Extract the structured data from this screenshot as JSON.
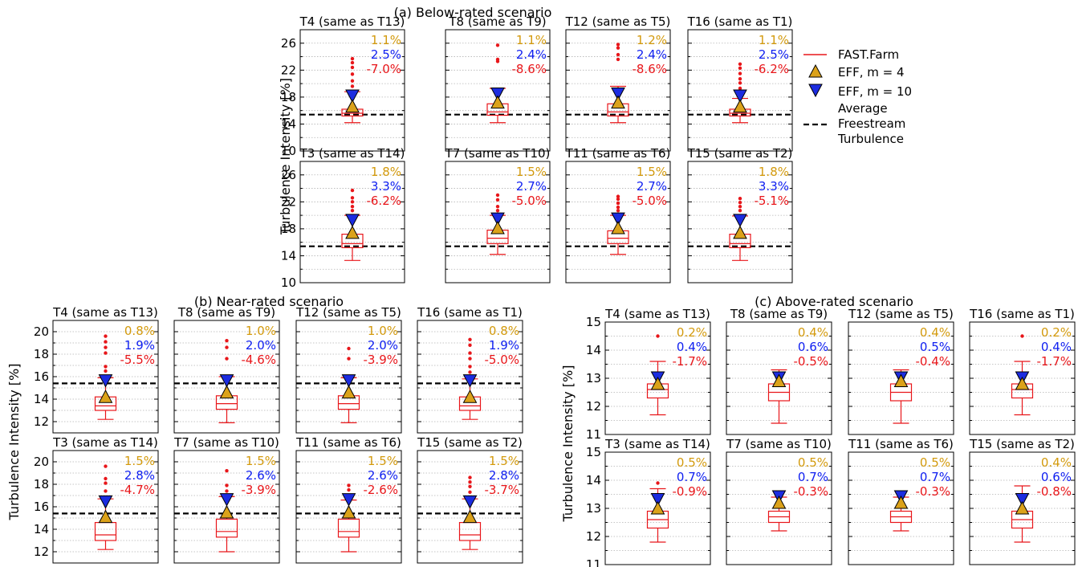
{
  "colors": {
    "farm": "#e8161a",
    "eff4": "#dba21a",
    "eff10": "#1c2ce0",
    "pct4": "#d39a0d",
    "pct10": "#1020f0",
    "pct_err": "#e8161a",
    "freestream": "#000000",
    "grid": "#b4b4b4"
  },
  "legend": {
    "farm": "FAST.Farm",
    "eff4": "EFF, m = 4",
    "eff10": "EFF, m = 10",
    "freestream_lines": [
      "Average",
      "Freestream",
      "Turbulence"
    ]
  },
  "chart_data": [
    {
      "type": "box",
      "title": "(a) Below-rated scenario",
      "ylabel": "Turbulence Intensity [%]",
      "ylim": [
        10,
        28
      ],
      "yticks": [
        10,
        14,
        18,
        22,
        26
      ],
      "grid": true,
      "freestream": 15.4,
      "panels": [
        {
          "title": "T4 (same as T13)",
          "box": {
            "whislo": 14.2,
            "q1": 15.2,
            "med": 15.6,
            "q3": 16.2,
            "whishi": 18.8
          },
          "fliers": [
            19.6,
            20.4,
            21.4,
            22.4,
            23.1,
            23.7
          ],
          "eff4": 16.6,
          "eff10": 18.1,
          "labels": [
            "1.1%",
            "2.5%",
            "-7.0%"
          ]
        },
        {
          "title": "T8 (same as T9)",
          "box": {
            "whislo": 14.2,
            "q1": 15.3,
            "med": 15.8,
            "q3": 17.0,
            "whishi": 19.3
          },
          "fliers": [
            23.3,
            23.6,
            25.7
          ],
          "eff4": 17.2,
          "eff10": 18.4,
          "labels": [
            "1.1%",
            "2.4%",
            "-8.6%"
          ]
        },
        {
          "title": "T12 (same as T5)",
          "box": {
            "whislo": 14.2,
            "q1": 15.2,
            "med": 15.8,
            "q3": 17.0,
            "whishi": 19.6
          },
          "fliers": [
            23.6,
            24.3,
            25.3,
            25.8
          ],
          "eff4": 17.2,
          "eff10": 18.4,
          "labels": [
            "1.2%",
            "2.4%",
            "-8.6%"
          ]
        },
        {
          "title": "T16 (same as T1)",
          "box": {
            "whislo": 14.2,
            "q1": 15.2,
            "med": 15.6,
            "q3": 16.2,
            "whishi": 17.8
          },
          "fliers": [
            18.8,
            19.3,
            20.1,
            20.7,
            21.5,
            22.3,
            22.9
          ],
          "eff4": 16.6,
          "eff10": 18.1,
          "labels": [
            "1.1%",
            "2.5%",
            "-6.2%"
          ]
        },
        {
          "title": "T3 (same as T14)",
          "box": {
            "whislo": 13.3,
            "q1": 15.2,
            "med": 15.8,
            "q3": 17.2,
            "whishi": 20.0
          },
          "fliers": [
            20.7,
            21.3,
            22.0,
            22.6,
            23.7
          ],
          "eff4": 17.4,
          "eff10": 19.2,
          "labels": [
            "1.8%",
            "3.3%",
            "-6.2%"
          ]
        },
        {
          "title": "T7 (same as T10)",
          "box": {
            "whislo": 14.2,
            "q1": 15.8,
            "med": 16.6,
            "q3": 17.8,
            "whishi": 20.0
          },
          "fliers": [
            20.7,
            21.3,
            22.3,
            23.0
          ],
          "eff4": 18.1,
          "eff10": 19.4,
          "labels": [
            "1.5%",
            "2.7%",
            "-5.0%"
          ]
        },
        {
          "title": "T11 (same as T6)",
          "box": {
            "whislo": 14.2,
            "q1": 15.8,
            "med": 16.6,
            "q3": 17.7,
            "whishi": 20.0
          },
          "fliers": [
            20.7,
            21.2,
            21.8,
            22.4,
            22.8
          ],
          "eff4": 18.1,
          "eff10": 19.4,
          "labels": [
            "1.5%",
            "2.7%",
            "-5.0%"
          ]
        },
        {
          "title": "T15 (same as T2)",
          "box": {
            "whislo": 13.3,
            "q1": 15.2,
            "med": 15.8,
            "q3": 17.2,
            "whishi": 19.9
          },
          "fliers": [
            20.7,
            21.3,
            21.9,
            22.5
          ],
          "eff4": 17.4,
          "eff10": 19.2,
          "labels": [
            "1.8%",
            "3.3%",
            "-5.1%"
          ]
        }
      ]
    },
    {
      "type": "box",
      "title": "(b) Near-rated scenario",
      "ylabel": "Turbulence Intensity [%]",
      "ylim": [
        11,
        21
      ],
      "yticks": [
        12,
        14,
        16,
        18,
        20
      ],
      "grid": true,
      "freestream": 15.4,
      "panels": [
        {
          "title": "T4 (same as T13)",
          "box": {
            "whislo": 12.2,
            "q1": 13.0,
            "med": 13.4,
            "q3": 14.2,
            "whishi": 15.9
          },
          "fliers": [
            16.5,
            16.9,
            18.1,
            18.6,
            19.1,
            19.6
          ],
          "eff4": 14.2,
          "eff10": 15.6,
          "labels": [
            "0.8%",
            "1.9%",
            "-5.5%"
          ]
        },
        {
          "title": "T8 (same as T9)",
          "box": {
            "whislo": 11.9,
            "q1": 13.1,
            "med": 13.6,
            "q3": 14.3,
            "whishi": 16.0
          },
          "fliers": [
            17.6,
            18.6,
            19.2
          ],
          "eff4": 14.6,
          "eff10": 15.6,
          "labels": [
            "1.0%",
            "2.0%",
            "-4.6%"
          ]
        },
        {
          "title": "T12 (same as T5)",
          "box": {
            "whislo": 11.9,
            "q1": 13.1,
            "med": 13.6,
            "q3": 14.3,
            "whishi": 15.9
          },
          "fliers": [
            17.6,
            18.5
          ],
          "eff4": 14.6,
          "eff10": 15.6,
          "labels": [
            "1.0%",
            "2.0%",
            "-3.9%"
          ]
        },
        {
          "title": "T16 (same as T1)",
          "box": {
            "whislo": 12.2,
            "q1": 13.0,
            "med": 13.4,
            "q3": 14.2,
            "whishi": 15.8
          },
          "fliers": [
            16.4,
            16.9,
            17.6,
            18.1,
            18.8,
            19.3
          ],
          "eff4": 14.2,
          "eff10": 15.6,
          "labels": [
            "0.8%",
            "1.9%",
            "-5.0%"
          ]
        },
        {
          "title": "T3 (same as T14)",
          "box": {
            "whislo": 12.2,
            "q1": 13.0,
            "med": 13.5,
            "q3": 14.6,
            "whishi": 16.7
          },
          "fliers": [
            17.4,
            18.1,
            18.5,
            19.6
          ],
          "eff4": 15.1,
          "eff10": 16.4,
          "labels": [
            "1.5%",
            "2.8%",
            "-4.7%"
          ]
        },
        {
          "title": "T7 (same as T10)",
          "box": {
            "whislo": 12.0,
            "q1": 13.3,
            "med": 13.8,
            "q3": 14.9,
            "whishi": 16.9
          },
          "fliers": [
            17.4,
            17.9,
            19.2
          ],
          "eff4": 15.5,
          "eff10": 16.6,
          "labels": [
            "1.5%",
            "2.6%",
            "-3.9%"
          ]
        },
        {
          "title": "T11 (same as T6)",
          "box": {
            "whislo": 12.0,
            "q1": 13.3,
            "med": 13.8,
            "q3": 14.9,
            "whishi": 16.6
          },
          "fliers": [
            17.5,
            17.9
          ],
          "eff4": 15.5,
          "eff10": 16.6,
          "labels": [
            "1.5%",
            "2.6%",
            "-2.6%"
          ]
        },
        {
          "title": "T15 (same as T2)",
          "box": {
            "whislo": 12.2,
            "q1": 13.0,
            "med": 13.5,
            "q3": 14.6,
            "whishi": 16.7
          },
          "fliers": [
            17.3,
            17.8,
            18.2,
            18.6
          ],
          "eff4": 15.1,
          "eff10": 16.4,
          "labels": [
            "1.5%",
            "2.8%",
            "-3.7%"
          ]
        }
      ]
    },
    {
      "type": "box",
      "title": "(c) Above-rated scenario",
      "ylabel": "Turbulence Intensity [%]",
      "ylim": [
        11,
        15
      ],
      "yticks": [
        11,
        12,
        13,
        14,
        15
      ],
      "grid": true,
      "freestream": null,
      "panels": [
        {
          "title": "T4 (same as T13)",
          "box": {
            "whislo": 11.7,
            "q1": 12.3,
            "med": 12.6,
            "q3": 12.8,
            "whishi": 13.6
          },
          "fliers": [
            14.5
          ],
          "eff4": 12.8,
          "eff10": 13.0,
          "labels": [
            "0.2%",
            "0.4%",
            "-1.7%"
          ]
        },
        {
          "title": "T8 (same as T9)",
          "box": {
            "whislo": 11.4,
            "q1": 12.2,
            "med": 12.5,
            "q3": 12.8,
            "whishi": 13.3
          },
          "fliers": [],
          "eff4": 12.9,
          "eff10": 13.0,
          "labels": [
            "0.4%",
            "0.6%",
            "-0.5%"
          ]
        },
        {
          "title": "T12 (same as T5)",
          "box": {
            "whislo": 11.4,
            "q1": 12.2,
            "med": 12.5,
            "q3": 12.8,
            "whishi": 13.3
          },
          "fliers": [],
          "eff4": 12.9,
          "eff10": 13.0,
          "labels": [
            "0.4%",
            "0.5%",
            "-0.4%"
          ]
        },
        {
          "title": "T16 (same as T1)",
          "box": {
            "whislo": 11.7,
            "q1": 12.3,
            "med": 12.6,
            "q3": 12.8,
            "whishi": 13.6
          },
          "fliers": [
            14.5
          ],
          "eff4": 12.8,
          "eff10": 13.0,
          "labels": [
            "0.2%",
            "0.4%",
            "-1.7%"
          ]
        },
        {
          "title": "T3 (same as T14)",
          "box": {
            "whislo": 11.8,
            "q1": 12.3,
            "med": 12.6,
            "q3": 12.9,
            "whishi": 13.7
          },
          "fliers": [
            13.9
          ],
          "eff4": 13.0,
          "eff10": 13.3,
          "labels": [
            "0.5%",
            "0.7%",
            "-0.9%"
          ]
        },
        {
          "title": "T7 (same as T10)",
          "box": {
            "whislo": 12.2,
            "q1": 12.5,
            "med": 12.7,
            "q3": 12.9,
            "whishi": 13.4
          },
          "fliers": [],
          "eff4": 13.2,
          "eff10": 13.4,
          "labels": [
            "0.5%",
            "0.7%",
            "-0.3%"
          ]
        },
        {
          "title": "T11 (same as T6)",
          "box": {
            "whislo": 12.2,
            "q1": 12.5,
            "med": 12.7,
            "q3": 12.9,
            "whishi": 13.4
          },
          "fliers": [],
          "eff4": 13.2,
          "eff10": 13.4,
          "labels": [
            "0.5%",
            "0.7%",
            "-0.3%"
          ]
        },
        {
          "title": "T15 (same as T2)",
          "box": {
            "whislo": 11.8,
            "q1": 12.3,
            "med": 12.6,
            "q3": 12.9,
            "whishi": 13.8
          },
          "fliers": [],
          "eff4": 13.0,
          "eff10": 13.3,
          "labels": [
            "0.4%",
            "0.6%",
            "-0.8%"
          ]
        }
      ]
    }
  ]
}
